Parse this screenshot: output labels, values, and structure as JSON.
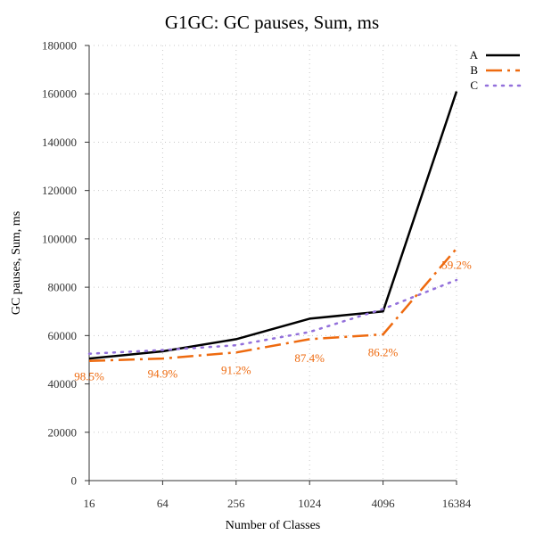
{
  "chart_data": {
    "type": "line",
    "title": "G1GC: GC pauses, Sum, ms",
    "xlabel": "Number of Classes",
    "ylabel": "GC pauses, Sum, ms",
    "x_scale": "log2",
    "x": [
      16,
      64,
      256,
      1024,
      4096,
      16384
    ],
    "xticks": [
      "16",
      "64",
      "256",
      "1024",
      "4096",
      "16384"
    ],
    "ylim": [
      0,
      180000
    ],
    "yticks": [
      "0",
      "20000",
      "40000",
      "60000",
      "80000",
      "100000",
      "120000",
      "140000",
      "160000",
      "180000"
    ],
    "grid": true,
    "legend_position": "top-right",
    "series": [
      {
        "name": "A",
        "color": "#000000",
        "style": "solid",
        "values": [
          50500,
          53500,
          58500,
          67000,
          70000,
          161000
        ]
      },
      {
        "name": "B",
        "color": "#ee6a0f",
        "style": "dash-dot",
        "values": [
          49500,
          50500,
          53000,
          58500,
          60500,
          96000
        ]
      },
      {
        "name": "C",
        "color": "#9370db",
        "style": "dotted",
        "values": [
          52500,
          54000,
          56000,
          61500,
          71000,
          83000
        ]
      }
    ],
    "annotations": [
      {
        "text": "98.5%",
        "x": 16,
        "y": 43000,
        "color": "#ee6a0f"
      },
      {
        "text": "94.9%",
        "x": 64,
        "y": 44000,
        "color": "#ee6a0f"
      },
      {
        "text": "91.2%",
        "x": 256,
        "y": 45500,
        "color": "#ee6a0f"
      },
      {
        "text": "87.4%",
        "x": 1024,
        "y": 50500,
        "color": "#ee6a0f"
      },
      {
        "text": "86.2%",
        "x": 4096,
        "y": 53000,
        "color": "#ee6a0f"
      },
      {
        "text": "59.2%",
        "x": 16384,
        "y": 89000,
        "color": "#ee6a0f"
      }
    ]
  }
}
